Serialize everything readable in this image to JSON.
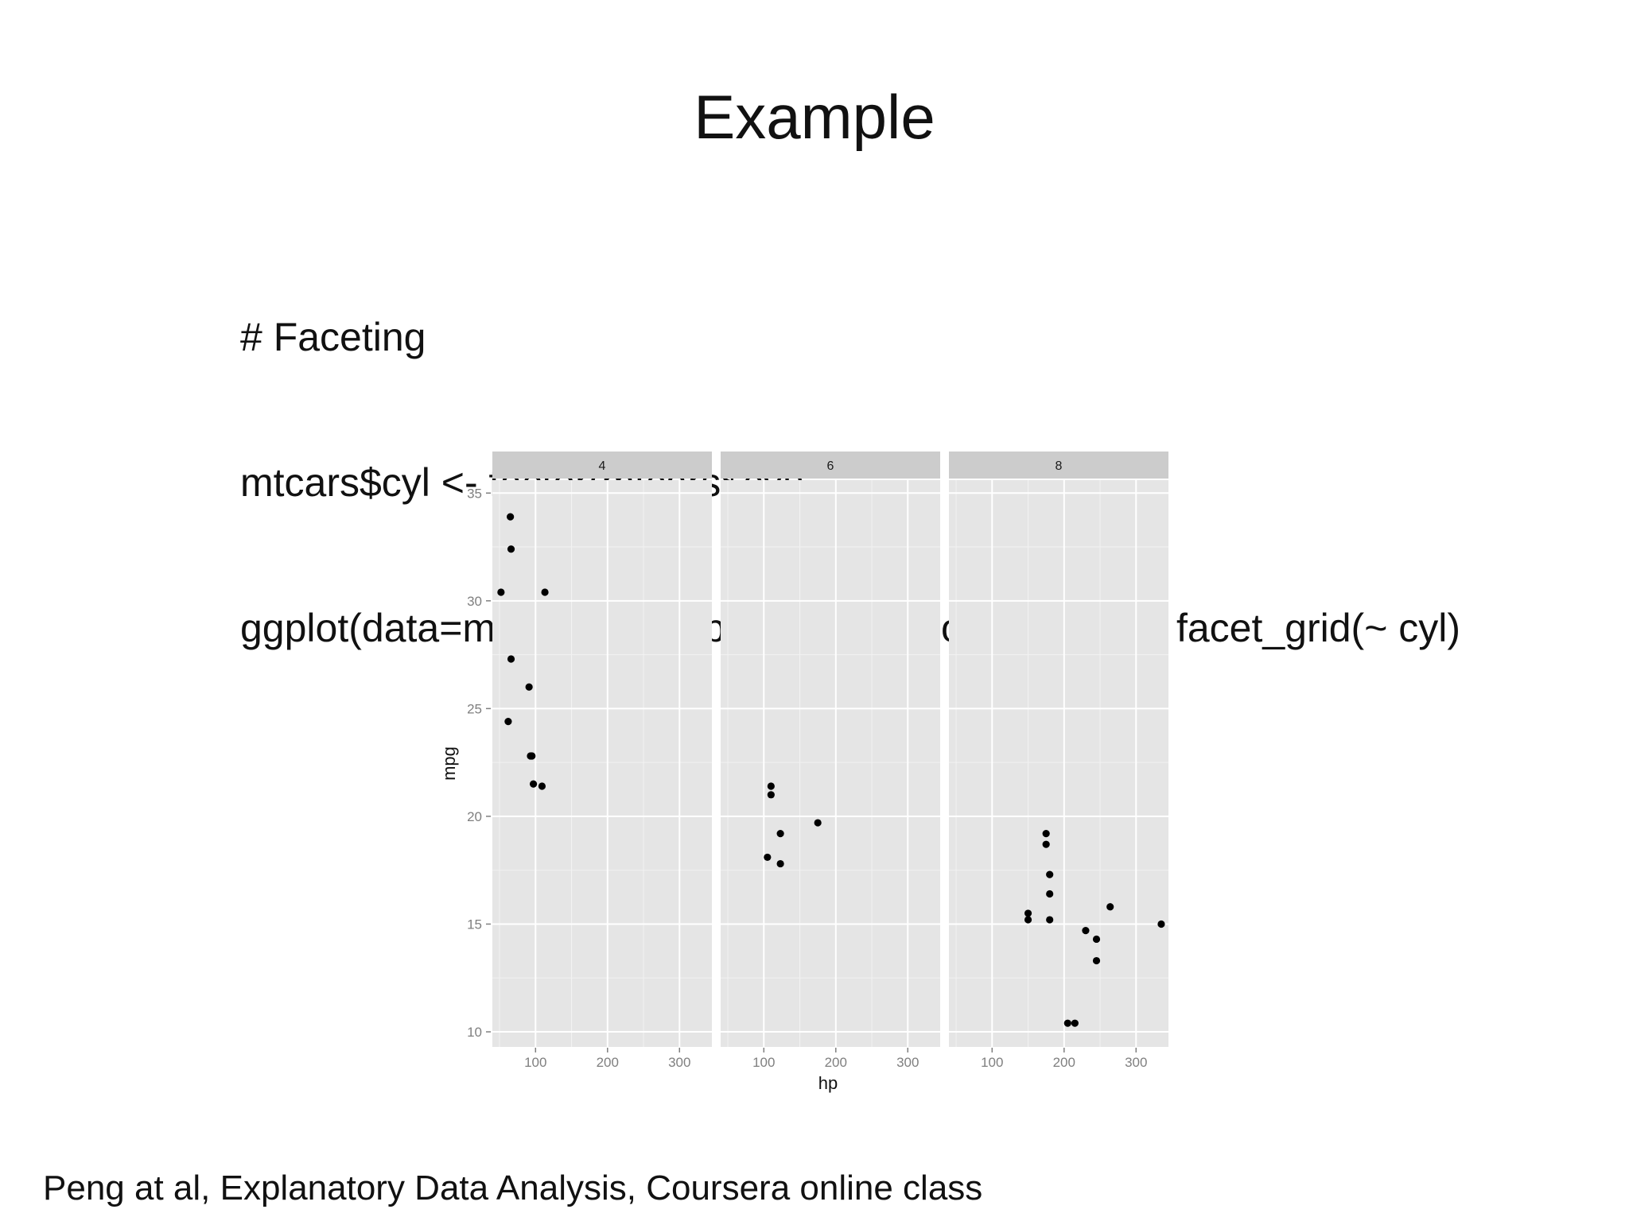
{
  "slide": {
    "title": "Example",
    "code": [
      "# Faceting",
      "mtcars$cyl <- factor(mtcars$cyl)",
      "ggplot(data=mtcars, aes(hp, mpg)) + geom_point() + facet_grid(~ cyl)"
    ],
    "footer": "Peng at al, Explanatory Data Analysis, Coursera online class"
  },
  "chart_data": {
    "type": "scatter",
    "xlabel": "hp",
    "ylabel": "mpg",
    "xlim": [
      40,
      345
    ],
    "ylim": [
      9.3,
      35.6
    ],
    "xticks": [
      100,
      200,
      300
    ],
    "yticks": [
      10,
      15,
      20,
      25,
      30,
      35
    ],
    "grid": true,
    "point_color": "#000000",
    "panel_color": "#e5e5e5",
    "strip_color": "#cccccc",
    "gridline_color": "#ffffff",
    "facets": [
      {
        "label": "4",
        "points": [
          {
            "x": 93,
            "y": 22.8
          },
          {
            "x": 62,
            "y": 24.4
          },
          {
            "x": 95,
            "y": 22.8
          },
          {
            "x": 66,
            "y": 32.4
          },
          {
            "x": 52,
            "y": 30.4
          },
          {
            "x": 65,
            "y": 33.9
          },
          {
            "x": 97,
            "y": 21.5
          },
          {
            "x": 66,
            "y": 27.3
          },
          {
            "x": 91,
            "y": 26.0
          },
          {
            "x": 113,
            "y": 30.4
          },
          {
            "x": 109,
            "y": 21.4
          }
        ]
      },
      {
        "label": "6",
        "points": [
          {
            "x": 110,
            "y": 21.0
          },
          {
            "x": 110,
            "y": 21.4
          },
          {
            "x": 105,
            "y": 18.1
          },
          {
            "x": 123,
            "y": 19.2
          },
          {
            "x": 123,
            "y": 17.8
          },
          {
            "x": 175,
            "y": 19.7
          }
        ]
      },
      {
        "label": "8",
        "points": [
          {
            "x": 175,
            "y": 18.7
          },
          {
            "x": 245,
            "y": 14.3
          },
          {
            "x": 180,
            "y": 16.4
          },
          {
            "x": 180,
            "y": 17.3
          },
          {
            "x": 180,
            "y": 15.2
          },
          {
            "x": 205,
            "y": 10.4
          },
          {
            "x": 215,
            "y": 10.4
          },
          {
            "x": 230,
            "y": 14.7
          },
          {
            "x": 150,
            "y": 15.5
          },
          {
            "x": 150,
            "y": 15.2
          },
          {
            "x": 245,
            "y": 13.3
          },
          {
            "x": 175,
            "y": 19.2
          },
          {
            "x": 264,
            "y": 15.8
          },
          {
            "x": 335,
            "y": 15.0
          }
        ]
      }
    ]
  }
}
